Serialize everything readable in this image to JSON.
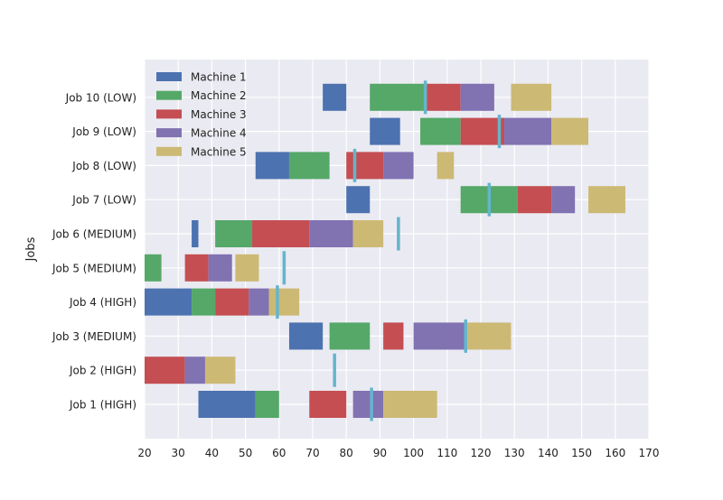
{
  "chart_data": {
    "type": "gantt",
    "title": "",
    "xlabel": "",
    "ylabel": "Jobs",
    "xlim": [
      20,
      170
    ],
    "xticks": [
      20,
      30,
      40,
      50,
      60,
      70,
      80,
      90,
      100,
      110,
      120,
      130,
      140,
      150,
      160,
      170
    ],
    "grid": true,
    "legend_position": "top-left",
    "machines": [
      {
        "name": "Machine 1",
        "color": "#4c72b0"
      },
      {
        "name": "Machine 2",
        "color": "#55a868"
      },
      {
        "name": "Machine 3",
        "color": "#c44e52"
      },
      {
        "name": "Machine 4",
        "color": "#8172b2"
      },
      {
        "name": "Machine 5",
        "color": "#ccb974"
      }
    ],
    "marker_color": "#64b5cd",
    "jobs": [
      {
        "label": "Job 1 (HIGH)",
        "deadline": 87.5,
        "tasks": [
          {
            "machine": 0,
            "start": 36,
            "end": 53
          },
          {
            "machine": 1,
            "start": 53,
            "end": 60
          },
          {
            "machine": 2,
            "start": 69,
            "end": 80
          },
          {
            "machine": 3,
            "start": 82,
            "end": 91
          },
          {
            "machine": 4,
            "start": 91,
            "end": 107
          }
        ]
      },
      {
        "label": "Job 2 (HIGH)",
        "deadline": 76.5,
        "tasks": [
          {
            "machine": 2,
            "start": 20,
            "end": 32
          },
          {
            "machine": 3,
            "start": 32,
            "end": 38
          },
          {
            "machine": 4,
            "start": 38,
            "end": 47
          }
        ]
      },
      {
        "label": "Job 3 (MEDIUM)",
        "deadline": 115.5,
        "tasks": [
          {
            "machine": 0,
            "start": 63,
            "end": 73
          },
          {
            "machine": 1,
            "start": 75,
            "end": 87
          },
          {
            "machine": 2,
            "start": 91,
            "end": 97
          },
          {
            "machine": 3,
            "start": 100,
            "end": 116
          },
          {
            "machine": 4,
            "start": 116,
            "end": 129
          }
        ]
      },
      {
        "label": "Job 4 (HIGH)",
        "deadline": 59.5,
        "tasks": [
          {
            "machine": 0,
            "start": 20,
            "end": 34
          },
          {
            "machine": 1,
            "start": 34,
            "end": 41
          },
          {
            "machine": 2,
            "start": 41,
            "end": 51
          },
          {
            "machine": 3,
            "start": 51,
            "end": 57
          },
          {
            "machine": 4,
            "start": 57,
            "end": 66
          }
        ]
      },
      {
        "label": "Job 5 (MEDIUM)",
        "deadline": 61.5,
        "tasks": [
          {
            "machine": 1,
            "start": 20,
            "end": 25
          },
          {
            "machine": 2,
            "start": 32,
            "end": 39
          },
          {
            "machine": 3,
            "start": 39,
            "end": 46
          },
          {
            "machine": 4,
            "start": 47,
            "end": 54
          }
        ]
      },
      {
        "label": "Job 6 (MEDIUM)",
        "deadline": 95.5,
        "tasks": [
          {
            "machine": 0,
            "start": 34,
            "end": 36
          },
          {
            "machine": 1,
            "start": 41,
            "end": 52
          },
          {
            "machine": 2,
            "start": 52,
            "end": 69
          },
          {
            "machine": 3,
            "start": 69,
            "end": 82
          },
          {
            "machine": 4,
            "start": 82,
            "end": 91
          }
        ]
      },
      {
        "label": "Job 7 (LOW)",
        "deadline": 122.5,
        "tasks": [
          {
            "machine": 0,
            "start": 80,
            "end": 87
          },
          {
            "machine": 1,
            "start": 114,
            "end": 131
          },
          {
            "machine": 2,
            "start": 131,
            "end": 141
          },
          {
            "machine": 3,
            "start": 141,
            "end": 148
          },
          {
            "machine": 4,
            "start": 152,
            "end": 163
          }
        ]
      },
      {
        "label": "Job 8 (LOW)",
        "deadline": 82.5,
        "tasks": [
          {
            "machine": 0,
            "start": 53,
            "end": 63
          },
          {
            "machine": 1,
            "start": 63,
            "end": 75
          },
          {
            "machine": 2,
            "start": 80,
            "end": 91
          },
          {
            "machine": 3,
            "start": 91,
            "end": 100
          },
          {
            "machine": 4,
            "start": 107,
            "end": 112
          }
        ]
      },
      {
        "label": "Job 9 (LOW)",
        "deadline": 125.5,
        "tasks": [
          {
            "machine": 0,
            "start": 87,
            "end": 96
          },
          {
            "machine": 1,
            "start": 102,
            "end": 114
          },
          {
            "machine": 2,
            "start": 114,
            "end": 127
          },
          {
            "machine": 3,
            "start": 127,
            "end": 141
          },
          {
            "machine": 4,
            "start": 141,
            "end": 152
          }
        ]
      },
      {
        "label": "Job 10 (LOW)",
        "deadline": 103.5,
        "tasks": [
          {
            "machine": 0,
            "start": 73,
            "end": 80
          },
          {
            "machine": 1,
            "start": 87,
            "end": 104
          },
          {
            "machine": 2,
            "start": 104,
            "end": 114
          },
          {
            "machine": 3,
            "start": 114,
            "end": 124
          },
          {
            "machine": 4,
            "start": 129,
            "end": 141
          }
        ]
      }
    ]
  }
}
